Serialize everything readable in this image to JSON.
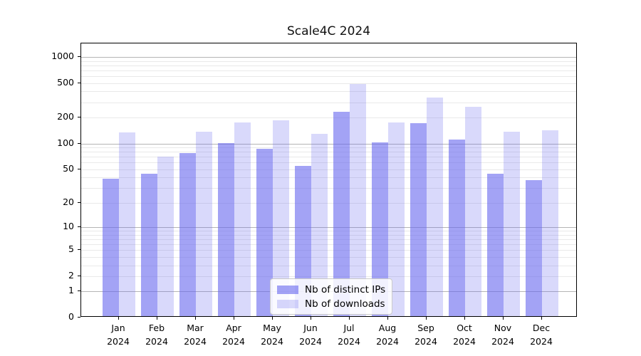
{
  "chart_data": {
    "type": "bar",
    "title": "Scale4C 2024",
    "categories": [
      "Jan",
      "Feb",
      "Mar",
      "Apr",
      "May",
      "Jun",
      "Jul",
      "Aug",
      "Sep",
      "Oct",
      "Nov",
      "Dec"
    ],
    "year_label": "2024",
    "series": [
      {
        "name": "Nb of distinct IPs",
        "color": "rgba(102,102,238,0.6)",
        "values": [
          37,
          43,
          74,
          97,
          83,
          53,
          224,
          100,
          167,
          107,
          43,
          36
        ]
      },
      {
        "name": "Nb of downloads",
        "color": "rgba(102,102,238,0.25)",
        "values": [
          129,
          68,
          132,
          169,
          179,
          124,
          469,
          169,
          330,
          256,
          132,
          137
        ]
      }
    ],
    "y_ticks": [
      0,
      1,
      2,
      5,
      10,
      20,
      50,
      100,
      200,
      500,
      1000
    ],
    "y_scale": "log(value+1)",
    "ylim": [
      0,
      1430
    ],
    "xlabel": "",
    "ylabel": "",
    "grid": "horizontal, major at 1/10/100/1000, minor at 2-9 per decade",
    "legend_position": "lower center"
  },
  "colors": {
    "major_grid": "#b5b5b5",
    "minor_grid": "#e9e9e9",
    "spine": "#000000",
    "legend_border": "#cbcbcb"
  }
}
